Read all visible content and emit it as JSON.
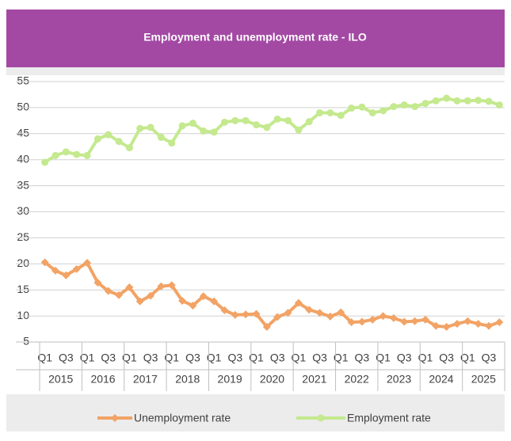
{
  "chart_data": {
    "type": "line",
    "title": "Employment and unemployment rate - ILO",
    "categories": [
      "Q1",
      null,
      "Q3",
      null,
      "Q1",
      null,
      "Q3",
      null,
      "Q1",
      null,
      "Q3",
      null,
      "Q1",
      null,
      "Q3",
      null,
      "Q1",
      null,
      "Q3",
      null,
      "Q1",
      null,
      "Q3",
      null,
      "Q1",
      null,
      "Q3",
      null,
      "Q1",
      null,
      "Q3",
      null,
      "Q1",
      null,
      "Q3",
      null,
      "Q1",
      null,
      "Q3",
      null,
      "Q1",
      null,
      "Q3",
      null
    ],
    "years": [
      "2015",
      "2016",
      "2017",
      "2018",
      "2019",
      "2020",
      "2021",
      "2022",
      "2023",
      "2024",
      "2025"
    ],
    "series": [
      {
        "name": "Unemployment rate",
        "color": "#f2a365",
        "marker": "diamond",
        "values": [
          20.3,
          18.7,
          17.8,
          19.0,
          20.2,
          16.4,
          14.8,
          14.0,
          15.5,
          12.8,
          13.9,
          15.7,
          15.9,
          12.9,
          12.0,
          13.8,
          12.8,
          11.1,
          10.2,
          10.3,
          10.4,
          7.9,
          9.8,
          10.6,
          12.5,
          11.2,
          10.6,
          9.9,
          10.7,
          8.8,
          8.9,
          9.3,
          10.0,
          9.6,
          8.9,
          9.0,
          9.3,
          8.1,
          7.9,
          8.5,
          9.0,
          8.5,
          8.1,
          8.8
        ]
      },
      {
        "name": "Employment rate",
        "color": "#c4e98e",
        "marker": "circle",
        "values": [
          39.5,
          40.8,
          41.5,
          41.0,
          40.8,
          44.0,
          44.8,
          43.5,
          42.3,
          46.0,
          46.2,
          44.3,
          43.2,
          46.5,
          47.0,
          45.5,
          45.3,
          47.2,
          47.5,
          47.5,
          46.7,
          46.2,
          47.8,
          47.5,
          45.7,
          47.3,
          49.0,
          49.0,
          48.5,
          49.9,
          50.1,
          49.0,
          49.4,
          50.2,
          50.5,
          50.2,
          50.8,
          51.3,
          51.8,
          51.3,
          51.3,
          51.4,
          51.2,
          50.5
        ]
      }
    ],
    "ylim": [
      5,
      55
    ],
    "yticks": [
      5,
      10,
      15,
      20,
      25,
      30,
      35,
      40,
      45,
      50,
      55
    ],
    "grid": true,
    "legend": "bottom"
  }
}
